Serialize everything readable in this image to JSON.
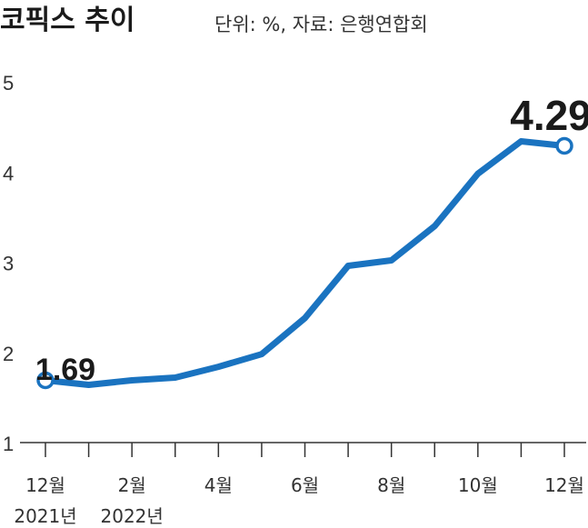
{
  "chart_data": {
    "type": "line",
    "title": "코픽스 추이",
    "subtitle": "단위: %, 자료: 은행연합회",
    "months": [
      "2021-12",
      "2022-01",
      "2022-02",
      "2022-03",
      "2022-04",
      "2022-05",
      "2022-06",
      "2022-07",
      "2022-08",
      "2022-09",
      "2022-10",
      "2022-11",
      "2022-12"
    ],
    "values": [
      1.69,
      1.64,
      1.69,
      1.72,
      1.84,
      1.98,
      2.38,
      2.96,
      3.02,
      3.4,
      3.98,
      4.34,
      4.29
    ],
    "x_tick_labels": [
      {
        "index": 0,
        "line1": "12월",
        "line2": "2021년"
      },
      {
        "index": 2,
        "line1": "2월",
        "line2": "2022년"
      },
      {
        "index": 4,
        "line1": "4월",
        "line2": ""
      },
      {
        "index": 6,
        "line1": "6월",
        "line2": ""
      },
      {
        "index": 8,
        "line1": "8월",
        "line2": ""
      },
      {
        "index": 10,
        "line1": "10월",
        "line2": ""
      },
      {
        "index": 12,
        "line1": "12월",
        "line2": ""
      }
    ],
    "y_ticks": [
      1,
      2,
      3,
      4,
      5
    ],
    "ylim": [
      1,
      5
    ],
    "data_labels": [
      {
        "index": 0,
        "text": "1.69"
      },
      {
        "index": 12,
        "text": "4.29"
      }
    ],
    "grid": false,
    "colors": {
      "line": "#1a73c0",
      "marker_fill": "#ffffff",
      "axis": "#333333",
      "text": "#1a1a1a"
    }
  }
}
